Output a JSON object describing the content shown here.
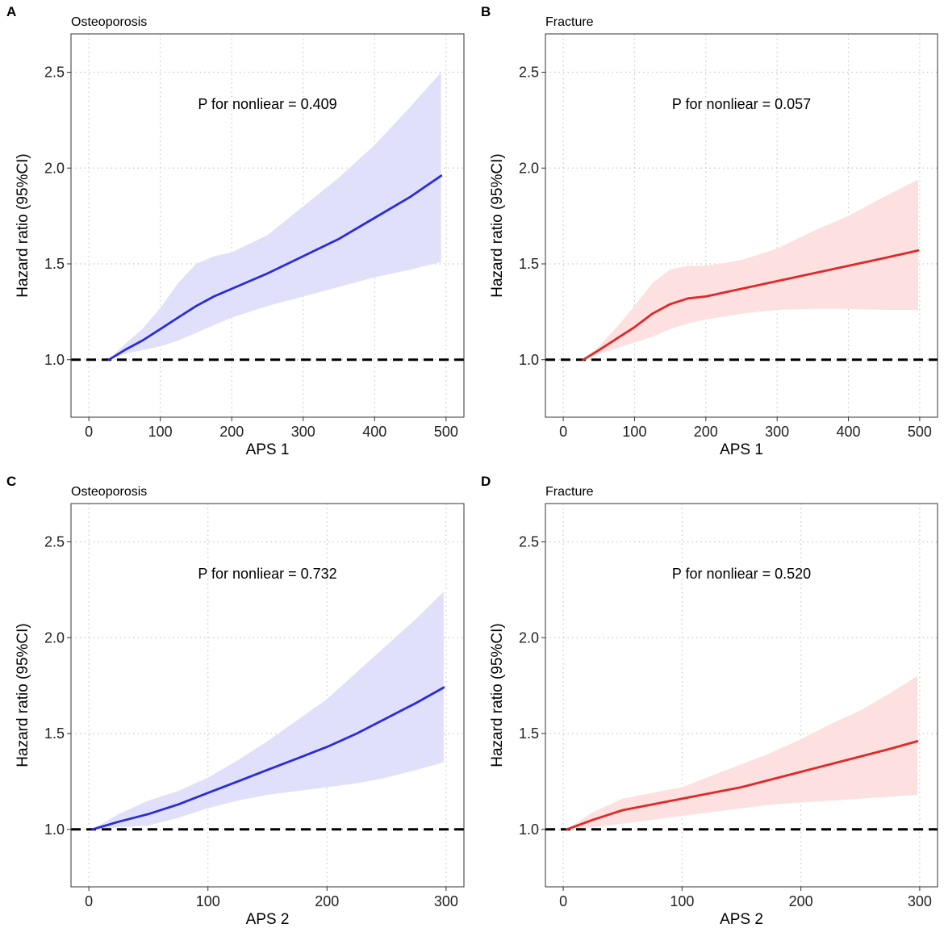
{
  "chart_data": [
    {
      "panel": "A",
      "title": "Osteoporosis",
      "type": "line",
      "xlabel": "APS 1",
      "ylabel": "Hazard ratio (95%CI)",
      "xlim": [
        -25,
        525
      ],
      "ylim": [
        0.7,
        2.7
      ],
      "xticks": [
        0,
        100,
        200,
        300,
        400,
        500
      ],
      "xtick_labels": [
        "0",
        "100",
        "200",
        "300",
        "400",
        "500"
      ],
      "yticks": [
        1.0,
        1.5,
        2.0,
        2.5
      ],
      "ytick_labels": [
        "1.0",
        "1.5",
        "2.0",
        "2.5"
      ],
      "reference_line": 1.0,
      "annotation": "P for nonliear = 0.409",
      "annotation_pos": [
        250,
        2.95
      ],
      "line_color": "#2b2bd9",
      "band_color": "#e0e0fb",
      "series": [
        {
          "name": "HR",
          "x": [
            28,
            50,
            75,
            100,
            125,
            150,
            175,
            200,
            250,
            300,
            350,
            400,
            450,
            493
          ],
          "y": [
            1.0,
            1.05,
            1.1,
            1.16,
            1.22,
            1.28,
            1.33,
            1.37,
            1.45,
            1.54,
            1.63,
            1.74,
            1.85,
            1.96
          ],
          "lower": [
            1.0,
            1.03,
            1.05,
            1.07,
            1.1,
            1.14,
            1.18,
            1.22,
            1.28,
            1.33,
            1.38,
            1.43,
            1.47,
            1.51
          ],
          "upper": [
            1.0,
            1.08,
            1.16,
            1.27,
            1.4,
            1.5,
            1.54,
            1.56,
            1.65,
            1.8,
            1.95,
            2.12,
            2.32,
            2.5
          ]
        }
      ]
    },
    {
      "panel": "B",
      "title": "Fracture",
      "type": "line",
      "xlabel": "APS 1",
      "ylabel": "Hazard ratio (95%CI)",
      "xlim": [
        -25,
        525
      ],
      "ylim": [
        0.7,
        2.7
      ],
      "xticks": [
        0,
        100,
        200,
        300,
        400,
        500
      ],
      "xtick_labels": [
        "0",
        "100",
        "200",
        "300",
        "400",
        "500"
      ],
      "yticks": [
        1.0,
        1.5,
        2.0,
        2.5
      ],
      "ytick_labels": [
        "1.0",
        "1.5",
        "2.0",
        "2.5"
      ],
      "reference_line": 1.0,
      "annotation": "P for nonliear = 0.057",
      "annotation_pos": [
        250,
        2.95
      ],
      "line_color": "#e02828",
      "band_color": "#fde0e0",
      "series": [
        {
          "name": "HR",
          "x": [
            28,
            50,
            75,
            100,
            125,
            150,
            175,
            200,
            250,
            300,
            350,
            400,
            450,
            498
          ],
          "y": [
            1.0,
            1.05,
            1.11,
            1.17,
            1.24,
            1.29,
            1.32,
            1.33,
            1.37,
            1.41,
            1.45,
            1.49,
            1.53,
            1.57
          ],
          "lower": [
            1.0,
            1.03,
            1.06,
            1.09,
            1.12,
            1.16,
            1.19,
            1.21,
            1.24,
            1.26,
            1.265,
            1.265,
            1.26,
            1.26
          ],
          "upper": [
            1.0,
            1.07,
            1.17,
            1.28,
            1.4,
            1.47,
            1.49,
            1.49,
            1.52,
            1.58,
            1.67,
            1.75,
            1.85,
            1.94
          ]
        }
      ]
    },
    {
      "panel": "C",
      "title": "Osteoporosis",
      "type": "line",
      "xlabel": "APS 2",
      "ylabel": "Hazard ratio (95%CI)",
      "xlim": [
        -15,
        315
      ],
      "ylim": [
        0.7,
        2.7
      ],
      "xticks": [
        0,
        100,
        200,
        300
      ],
      "xtick_labels": [
        "0",
        "100",
        "200",
        "300"
      ],
      "yticks": [
        1.0,
        1.5,
        2.0,
        2.5
      ],
      "ytick_labels": [
        "1.0",
        "1.5",
        "2.0",
        "2.5"
      ],
      "reference_line": 1.0,
      "annotation": "P for nonliear = 0.732",
      "annotation_pos": [
        150,
        2.95
      ],
      "line_color": "#2b2bd9",
      "band_color": "#e0e0fb",
      "series": [
        {
          "name": "HR",
          "x": [
            3,
            25,
            50,
            75,
            100,
            125,
            150,
            175,
            200,
            225,
            250,
            275,
            298
          ],
          "y": [
            1.0,
            1.04,
            1.08,
            1.13,
            1.19,
            1.25,
            1.31,
            1.37,
            1.43,
            1.5,
            1.58,
            1.66,
            1.74
          ],
          "lower": [
            1.0,
            1.01,
            1.02,
            1.06,
            1.11,
            1.15,
            1.18,
            1.2,
            1.22,
            1.24,
            1.27,
            1.31,
            1.35
          ],
          "upper": [
            1.0,
            1.08,
            1.15,
            1.2,
            1.27,
            1.36,
            1.46,
            1.57,
            1.68,
            1.82,
            1.96,
            2.1,
            2.24
          ]
        }
      ]
    },
    {
      "panel": "D",
      "title": "Fracture",
      "type": "line",
      "xlabel": "APS 2",
      "ylabel": "Hazard ratio (95%CI)",
      "xlim": [
        -15,
        315
      ],
      "ylim": [
        0.7,
        2.7
      ],
      "xticks": [
        0,
        100,
        200,
        300
      ],
      "xtick_labels": [
        "0",
        "100",
        "200",
        "300"
      ],
      "yticks": [
        1.0,
        1.5,
        2.0,
        2.5
      ],
      "ytick_labels": [
        "1.0",
        "1.5",
        "2.0",
        "2.5"
      ],
      "reference_line": 1.0,
      "annotation": "P for nonliear = 0.520",
      "annotation_pos": [
        150,
        2.95
      ],
      "line_color": "#e02828",
      "band_color": "#fde0e0",
      "series": [
        {
          "name": "HR",
          "x": [
            3,
            25,
            50,
            75,
            100,
            125,
            150,
            175,
            200,
            225,
            250,
            275,
            298
          ],
          "y": [
            1.0,
            1.05,
            1.1,
            1.13,
            1.16,
            1.19,
            1.22,
            1.26,
            1.3,
            1.34,
            1.38,
            1.42,
            1.46
          ],
          "lower": [
            1.0,
            1.01,
            1.03,
            1.05,
            1.07,
            1.09,
            1.11,
            1.13,
            1.14,
            1.15,
            1.16,
            1.17,
            1.18
          ],
          "upper": [
            1.0,
            1.09,
            1.16,
            1.19,
            1.22,
            1.28,
            1.34,
            1.4,
            1.47,
            1.55,
            1.62,
            1.71,
            1.8
          ]
        }
      ]
    }
  ]
}
